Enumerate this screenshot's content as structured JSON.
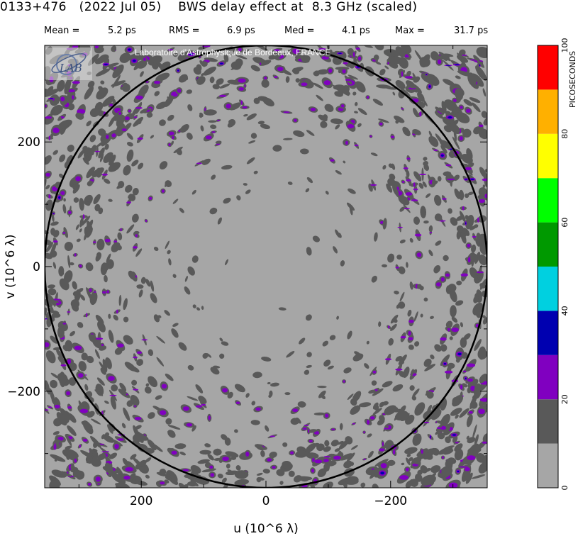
{
  "header": {
    "title": "0133+476   (2022 Jul 05)    BWS delay effect at  8.3 GHz (scaled)",
    "stats": [
      {
        "label": "Mean =",
        "value": "5.2 ps"
      },
      {
        "label": "RMS =",
        "value": "6.9 ps"
      },
      {
        "label": "Med =",
        "value": "4.1 ps"
      },
      {
        "label": "Max =",
        "value": "31.7 ps"
      }
    ]
  },
  "credit": "Laboratoire d'Astrophysique de Bordeaux, FRANCE",
  "logo_text": "LAB",
  "chart_data": {
    "type": "heatmap",
    "title": "0133+476   (2022 Jul 05)    BWS delay effect at  8.3 GHz (scaled)",
    "xlabel": "u  (10^6 λ)",
    "ylabel": "v  (10^6 λ)",
    "xlim": [
      355,
      -355
    ],
    "ylim": [
      -355,
      355
    ],
    "x_ticks": [
      "200",
      "0",
      "−200"
    ],
    "y_ticks": [
      "200",
      "0",
      "−200"
    ],
    "circle_radius": 355,
    "colorbar": {
      "label": "PICOSECONDS",
      "range": [
        0,
        100
      ],
      "tick_labels": [
        "0",
        "20",
        "40",
        "60",
        "80",
        "100"
      ],
      "levels": [
        {
          "from": 0,
          "to": 10,
          "color": "#a6a6a6"
        },
        {
          "from": 10,
          "to": 20,
          "color": "#595959"
        },
        {
          "from": 20,
          "to": 30,
          "color": "#8000c0"
        },
        {
          "from": 30,
          "to": 40,
          "color": "#0000b0"
        },
        {
          "from": 40,
          "to": 50,
          "color": "#00d0e0"
        },
        {
          "from": 50,
          "to": 60,
          "color": "#009900"
        },
        {
          "from": 60,
          "to": 70,
          "color": "#00ff00"
        },
        {
          "from": 70,
          "to": 80,
          "color": "#ffff00"
        },
        {
          "from": 80,
          "to": 90,
          "color": "#ffb000"
        },
        {
          "from": 90,
          "to": 100,
          "color": "#ff0000"
        }
      ]
    },
    "statistics_ps": {
      "mean": 5.2,
      "rms": 6.9,
      "median": 4.1,
      "max": 31.7
    }
  }
}
